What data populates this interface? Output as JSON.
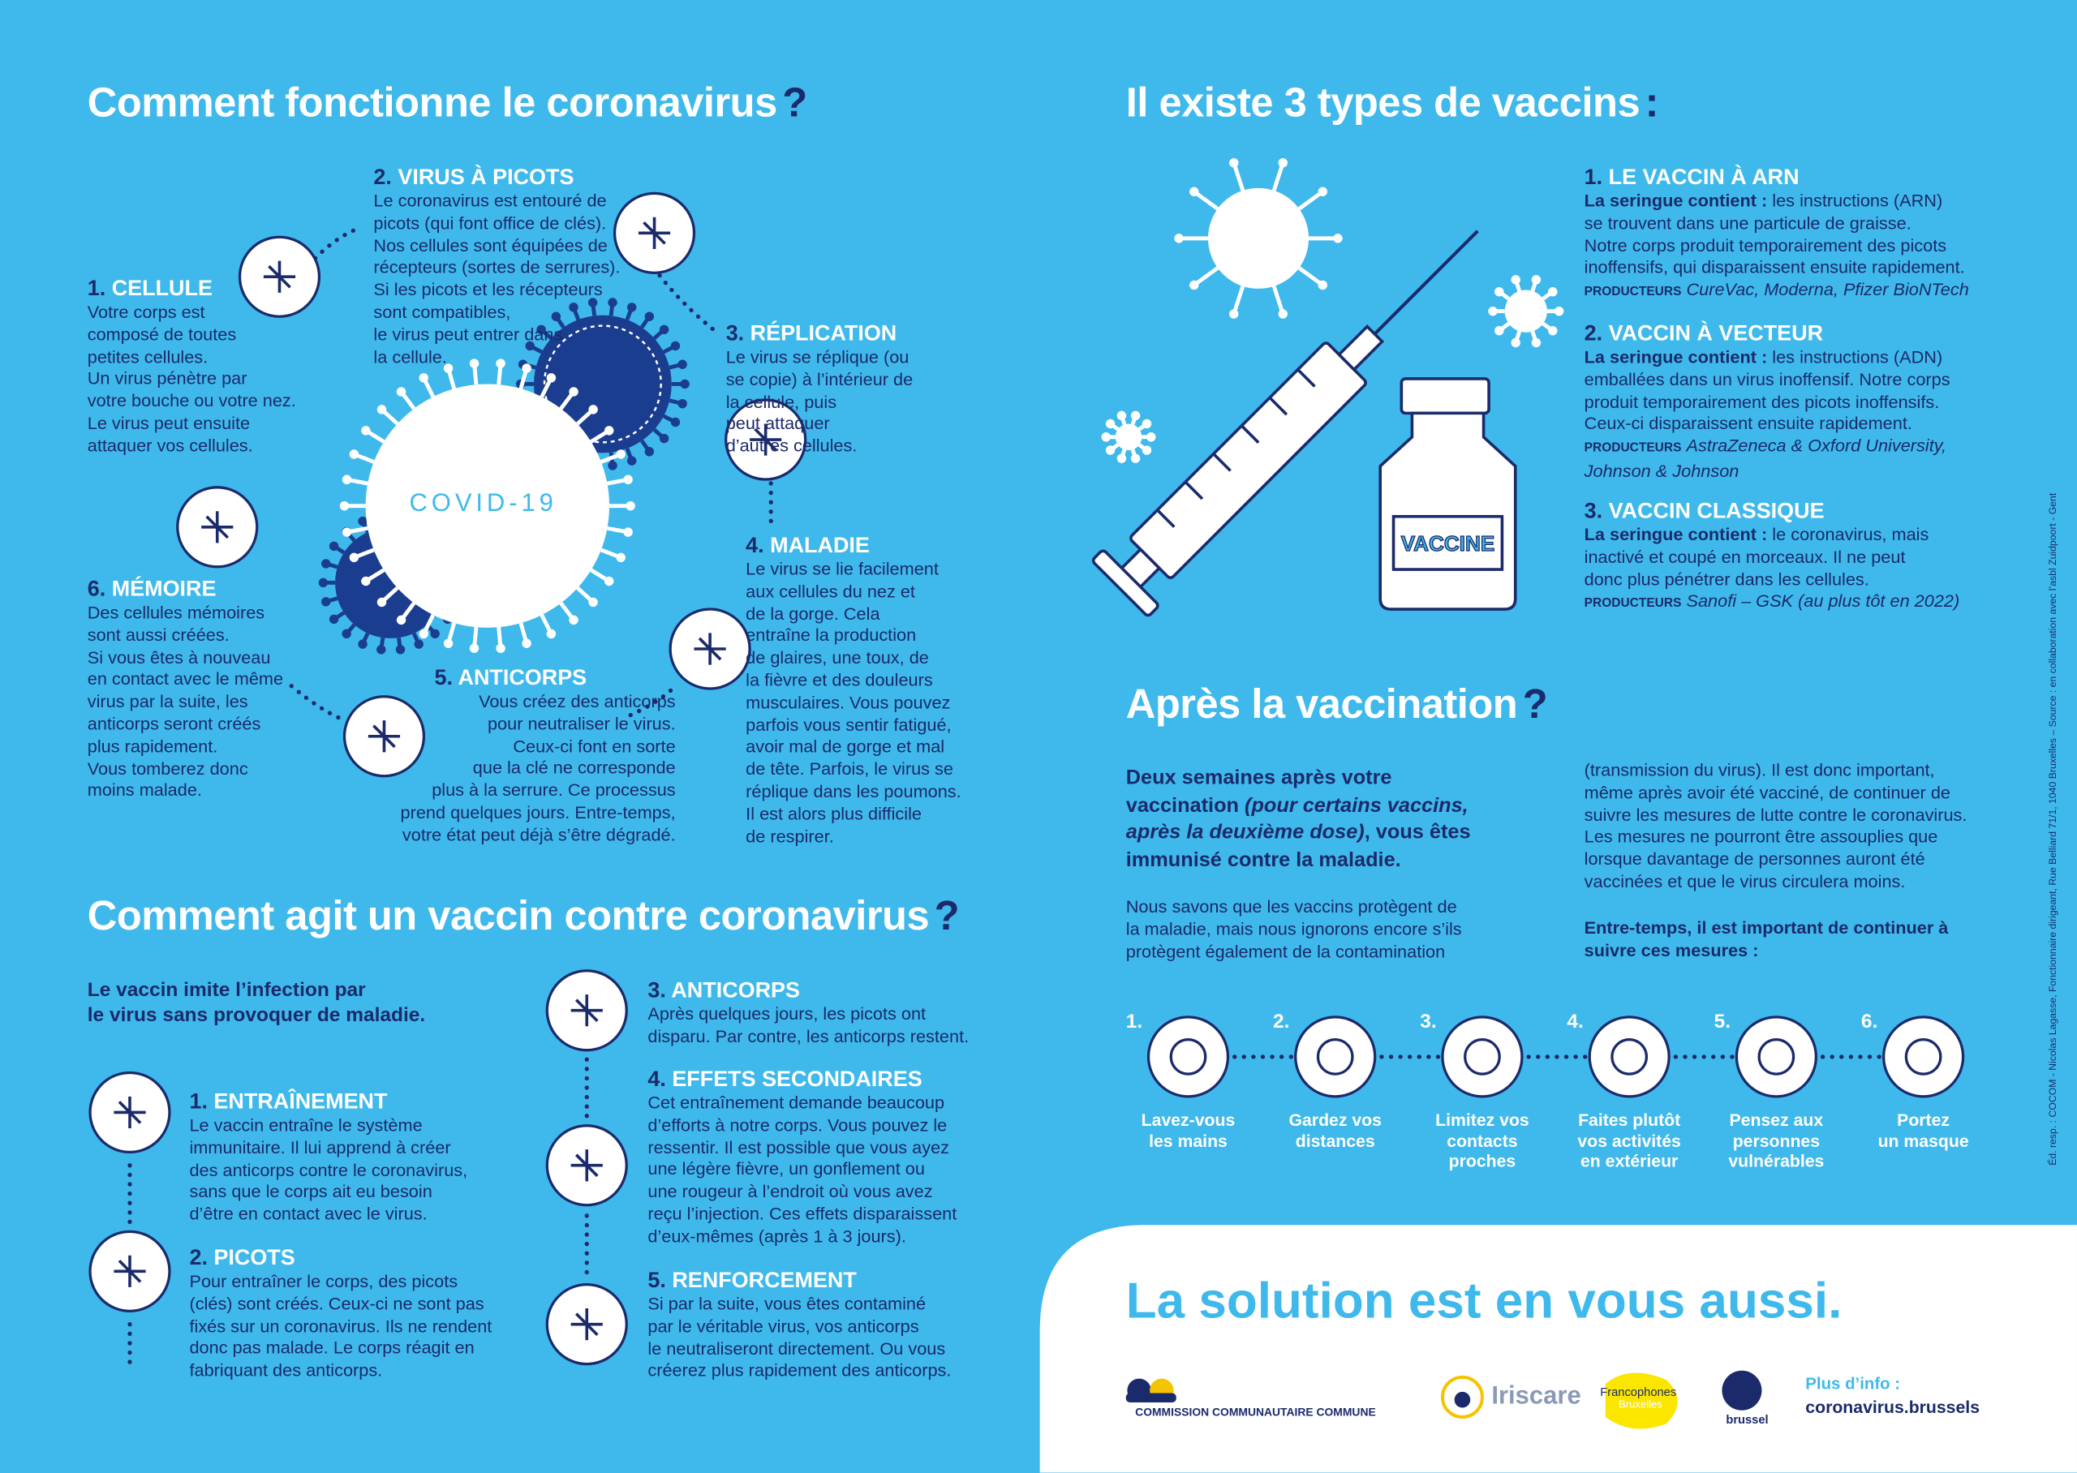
{
  "virus_section": {
    "title": "Comment fonctionne le coronavirus",
    "mark": "?",
    "virus_label": "COVID-19",
    "steps": [
      {
        "num": "1.",
        "title": "CELLULE",
        "lines": [
          "Votre corps est",
          "composé de toutes",
          "petites cellules.",
          "Un virus pénètre par",
          "votre bouche ou votre nez.",
          "Le virus peut ensuite",
          "attaquer vos cellules."
        ]
      },
      {
        "num": "2.",
        "title": "VIRUS À PICOTS",
        "lines": [
          "Le coronavirus est entouré de",
          "picots (qui font office de clés).",
          "Nos cellules sont équipées de",
          "récepteurs (sortes de serrures).",
          "Si les picots et les récepteurs",
          "sont compatibles,",
          "le virus peut entrer dans",
          "la cellule."
        ]
      },
      {
        "num": "3.",
        "title": "RÉPLICATION",
        "lines": [
          "Le virus se réplique (ou",
          "se copie) à l’intérieur de",
          "la cellule, puis",
          "peut attaquer",
          "d’autres cellules."
        ]
      },
      {
        "num": "4.",
        "title": "MALADIE",
        "lines": [
          "Le virus se lie facilement",
          "aux cellules du nez et",
          "de la gorge. Cela",
          "entraîne la production",
          "de glaires, une toux, de",
          "la fièvre et des douleurs",
          "musculaires. Vous pouvez",
          "parfois vous sentir fatigué,",
          "avoir mal de gorge et mal",
          "de tête. Parfois, le virus se",
          "réplique dans les poumons.",
          "Il est alors plus difficile",
          "de respirer."
        ]
      },
      {
        "num": "5.",
        "title": "ANTICORPS",
        "lines": [
          "Vous créez des anticorps",
          "pour neutraliser le virus.",
          "Ceux-ci font en sorte",
          "que la clé ne corresponde",
          "plus à la serrure. Ce processus",
          "prend quelques jours. Entre-temps,",
          "votre état peut déjà s’être dégradé."
        ]
      },
      {
        "num": "6.",
        "title": "MÉMOIRE",
        "lines": [
          "Des cellules mémoires",
          "sont aussi créées.",
          "Si vous êtes à nouveau",
          "en contact avec le même",
          "virus par la suite, les",
          "anticorps seront créés",
          "plus rapidement.",
          "Vous tomberez donc",
          "moins malade."
        ]
      }
    ]
  },
  "vaccine_section": {
    "title": "Comment agit un vaccin contre coronavirus",
    "mark": "?",
    "intro": [
      "Le vaccin imite l’infection par",
      "le virus sans provoquer de maladie."
    ],
    "steps": [
      {
        "num": "1.",
        "title": "ENTRAÎNEMENT",
        "lines": [
          "Le vaccin entraîne le système",
          "immunitaire. Il lui apprend à créer",
          "des anticorps contre le coronavirus,",
          "sans que le corps ait eu besoin",
          "d’être en contact avec le virus."
        ]
      },
      {
        "num": "2.",
        "title": "PICOTS",
        "lines": [
          "Pour entraîner le corps, des picots",
          "(clés) sont créés. Ceux-ci ne sont pas",
          "fixés sur un coronavirus. Ils ne rendent",
          "donc pas malade. Le corps réagit en",
          "fabriquant des anticorps."
        ]
      },
      {
        "num": "3.",
        "title": "ANTICORPS",
        "lines": [
          "Après quelques jours, les picots ont",
          "disparu. Par contre, les anticorps restent."
        ]
      },
      {
        "num": "4.",
        "title": "EFFETS SECONDAIRES",
        "lines": [
          "Cet entraînement demande beaucoup",
          "d’efforts à notre corps. Vous pouvez le",
          "ressentir. Il est possible que vous ayez",
          "une légère fièvre, un gonflement ou",
          "une rougeur à l’endroit où vous avez",
          "reçu l’injection. Ces effets disparaissent",
          "d’eux-mêmes (après 1 à 3 jours)."
        ]
      },
      {
        "num": "5.",
        "title": "RENFORCEMENT",
        "lines": [
          "Si par la suite, vous êtes contaminé",
          "par le véritable virus, vos anticorps",
          "le neutraliseront directement. Ou vous",
          "créerez plus rapidement des anticorps."
        ]
      }
    ]
  },
  "types_section": {
    "title": "Il existe 3 types de vaccins",
    "mark": ":",
    "bottle_label": "VACCINE",
    "types": [
      {
        "num": "1.",
        "title": "LE VACCIN À ARN",
        "lead": "La seringue contient :",
        "lines": [
          "les instructions (ARN)",
          "se trouvent dans une particule de graisse.",
          "Notre corps produit temporairement des picots",
          "inoffensifs, qui disparaissent ensuite rapidement."
        ],
        "producers_label": "PRODUCTEURS",
        "producers": [
          "CureVac, Moderna, Pfizer BioNTech"
        ]
      },
      {
        "num": "2.",
        "title": "VACCIN À VECTEUR",
        "lead": "La seringue contient :",
        "lines": [
          "les instructions (ADN)",
          "emballées dans un virus inoffensif. Notre corps",
          "produit temporairement des picots inoffensifs.",
          "Ceux-ci disparaissent ensuite rapidement."
        ],
        "producers_label": "PRODUCTEURS",
        "producers": [
          "AstraZeneca & Oxford University,",
          "Johnson & Johnson"
        ]
      },
      {
        "num": "3.",
        "title": "VACCIN CLASSIQUE",
        "lead": "La seringue contient :",
        "lines": [
          "le coronavirus, mais",
          "inactivé et coupé en morceaux. Il ne peut",
          "donc plus pénétrer dans les cellules."
        ],
        "producers_label": "PRODUCTEURS",
        "producers": [
          "Sanofi – GSK (au plus tôt en 2022)"
        ]
      }
    ]
  },
  "after_section": {
    "title": "Après la vaccination",
    "mark": "?",
    "lead": [
      "Deux semaines après votre vaccination ",
      "(pour certains vaccins, après la deuxième dose)",
      ", vous êtes immunisé contre la maladie."
    ],
    "paragraph_1": [
      "Nous savons que les vaccins protègent de",
      "la maladie, mais nous ignorons encore s’ils",
      "protègent également de la contamination"
    ],
    "paragraph_2": [
      "(transmission du virus). Il est donc important,",
      "même après avoir été vacciné, de continuer de",
      "suivre les mesures de lutte contre le coronavirus.",
      "Les mesures ne pourront être assouplies que",
      "lorsque davantage de personnes auront été",
      "vaccinées et que le virus circulera moins."
    ],
    "measures_intro": [
      "Entre-temps, il est important de continuer à",
      "suivre ces mesures :"
    ],
    "measures": [
      {
        "num": "1.",
        "label": [
          "Lavez-vous",
          "les mains"
        ]
      },
      {
        "num": "2.",
        "label": [
          "Gardez vos",
          "distances"
        ]
      },
      {
        "num": "3.",
        "label": [
          "Limitez vos",
          "contacts",
          "proches"
        ]
      },
      {
        "num": "4.",
        "label": [
          "Faites plutôt",
          "vos activités",
          "en extérieur"
        ]
      },
      {
        "num": "5.",
        "label": [
          "Pensez aux",
          "personnes",
          "vulnérables"
        ]
      },
      {
        "num": "6.",
        "label": [
          "Portez",
          "un masque"
        ]
      }
    ]
  },
  "footer": {
    "slogan": "La solution est en vous aussi.",
    "logos": [
      "COMMISSION COMMUNAUTAIRE COMMUNE",
      "Iriscare",
      "Francophones",
      "Bruxelles",
      "brussel"
    ],
    "info_label": "Plus d’info :",
    "info_url": "coronavirus.brussels",
    "legal": "Éd. resp. : COCOM - Nicolas Lagasse, Fonctionnaire dirigeant, Rue Belliard 71/1, 1040 Bruxelles – Source : en collaboration avec l’asbl Zuidpoort - Gent"
  }
}
